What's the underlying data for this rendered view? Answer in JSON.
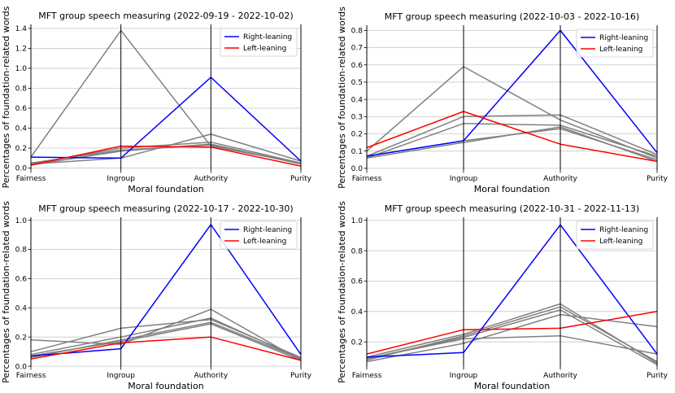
{
  "chart_data": [
    {
      "type": "line",
      "title": "MFT group speech measuring (2022-09-19 - 2022-10-02)",
      "xlabel": "Moral foundation",
      "ylabel": "Percentages of foundation-related words",
      "categories": [
        "Fairness",
        "Ingroup",
        "Authority",
        "Purity"
      ],
      "ylim": [
        -0.02,
        1.44
      ],
      "yticks": [
        0.0,
        0.2,
        0.4,
        0.6,
        0.8,
        1.0,
        1.2,
        1.4
      ],
      "ytick_labels": [
        "0.0",
        "0.2",
        "0.4",
        "0.6",
        "0.8",
        "1.0",
        "1.2",
        "1.4"
      ],
      "legend": {
        "position": "upper-right",
        "entries": [
          {
            "name": "Right-leaning",
            "color": "#0000ff"
          },
          {
            "name": "Left-leaning",
            "color": "#ff0000"
          }
        ]
      },
      "series": [
        {
          "name": "",
          "color": "#808080",
          "values": [
            0.11,
            1.38,
            0.22,
            0.05
          ]
        },
        {
          "name": "",
          "color": "#808080",
          "values": [
            0.04,
            0.1,
            0.34,
            0.07
          ]
        },
        {
          "name": "",
          "color": "#808080",
          "values": [
            0.04,
            0.2,
            0.26,
            0.05
          ]
        },
        {
          "name": "",
          "color": "#808080",
          "values": [
            0.03,
            0.17,
            0.24,
            0.04
          ]
        },
        {
          "name": "",
          "color": "#808080",
          "values": [
            0.05,
            0.18,
            0.23,
            0.05
          ]
        },
        {
          "name": "Right-leaning",
          "color": "#0000ff",
          "values": [
            0.11,
            0.1,
            0.91,
            0.07
          ]
        },
        {
          "name": "Left-leaning",
          "color": "#ff0000",
          "values": [
            0.03,
            0.22,
            0.21,
            0.02
          ]
        }
      ]
    },
    {
      "type": "line",
      "title": "MFT group speech measuring (2022-10-03 - 2022-10-16)",
      "xlabel": "Moral foundation",
      "ylabel": "Percentages of foundation-related words",
      "categories": [
        "Fairness",
        "Ingroup",
        "Authority",
        "Purity"
      ],
      "ylim": [
        -0.01,
        0.83
      ],
      "yticks": [
        0.0,
        0.1,
        0.2,
        0.3,
        0.4,
        0.5,
        0.6,
        0.7,
        0.8
      ],
      "ytick_labels": [
        "0.0",
        "0.1",
        "0.2",
        "0.3",
        "0.4",
        "0.5",
        "0.6",
        "0.7",
        "0.8"
      ],
      "legend": {
        "position": "upper-right",
        "entries": [
          {
            "name": "Right-leaning",
            "color": "#0000ff"
          },
          {
            "name": "Left-leaning",
            "color": "#ff0000"
          }
        ]
      },
      "series": [
        {
          "name": "",
          "color": "#808080",
          "values": [
            0.1,
            0.59,
            0.28,
            0.06
          ]
        },
        {
          "name": "",
          "color": "#808080",
          "values": [
            0.07,
            0.3,
            0.31,
            0.08
          ]
        },
        {
          "name": "",
          "color": "#808080",
          "values": [
            0.06,
            0.26,
            0.25,
            0.07
          ]
        },
        {
          "name": "",
          "color": "#808080",
          "values": [
            0.07,
            0.16,
            0.23,
            0.05
          ]
        },
        {
          "name": "",
          "color": "#808080",
          "values": [
            0.06,
            0.15,
            0.24,
            0.04
          ]
        },
        {
          "name": "Right-leaning",
          "color": "#0000ff",
          "values": [
            0.07,
            0.16,
            0.8,
            0.09
          ]
        },
        {
          "name": "Left-leaning",
          "color": "#ff0000",
          "values": [
            0.12,
            0.33,
            0.14,
            0.04
          ]
        }
      ]
    },
    {
      "type": "line",
      "title": "MFT group speech measuring (2022-10-17 - 2022-10-30)",
      "xlabel": "Moral foundation",
      "ylabel": "Percentages of foundation-related words",
      "categories": [
        "Fairness",
        "Ingroup",
        "Authority",
        "Purity"
      ],
      "ylim": [
        -0.005,
        1.02
      ],
      "yticks": [
        0.0,
        0.2,
        0.4,
        0.6,
        0.8,
        1.0
      ],
      "ytick_labels": [
        "0.0",
        "0.2",
        "0.4",
        "0.6",
        "0.8",
        "1.0"
      ],
      "legend": {
        "position": "upper-right",
        "entries": [
          {
            "name": "Right-leaning",
            "color": "#0000ff"
          },
          {
            "name": "Left-leaning",
            "color": "#ff0000"
          }
        ]
      },
      "series": [
        {
          "name": "",
          "color": "#808080",
          "values": [
            0.18,
            0.15,
            0.39,
            0.04
          ]
        },
        {
          "name": "",
          "color": "#808080",
          "values": [
            0.1,
            0.26,
            0.32,
            0.06
          ]
        },
        {
          "name": "",
          "color": "#808080",
          "values": [
            0.08,
            0.2,
            0.33,
            0.05
          ]
        },
        {
          "name": "",
          "color": "#808080",
          "values": [
            0.06,
            0.18,
            0.3,
            0.05
          ]
        },
        {
          "name": "",
          "color": "#808080",
          "values": [
            0.07,
            0.17,
            0.29,
            0.04
          ]
        },
        {
          "name": "Right-leaning",
          "color": "#0000ff",
          "values": [
            0.07,
            0.12,
            0.97,
            0.08
          ]
        },
        {
          "name": "Left-leaning",
          "color": "#ff0000",
          "values": [
            0.05,
            0.16,
            0.2,
            0.04
          ]
        }
      ]
    },
    {
      "type": "line",
      "title": "MFT group speech measuring (2022-10-31 - 2022-11-13)",
      "xlabel": "Moral foundation",
      "ylabel": "Percentages of foundation-related words",
      "categories": [
        "Fairness",
        "Ingroup",
        "Authority",
        "Purity"
      ],
      "ylim": [
        0.035,
        1.02
      ],
      "yticks": [
        0.2,
        0.4,
        0.6,
        0.8,
        1.0
      ],
      "ytick_labels": [
        "0.2",
        "0.4",
        "0.6",
        "0.8",
        "1.0"
      ],
      "legend": {
        "position": "upper-right",
        "entries": [
          {
            "name": "Right-leaning",
            "color": "#0000ff"
          },
          {
            "name": "Left-leaning",
            "color": "#ff0000"
          }
        ]
      },
      "series": [
        {
          "name": "",
          "color": "#808080",
          "values": [
            0.09,
            0.22,
            0.24,
            0.12
          ]
        },
        {
          "name": "",
          "color": "#808080",
          "values": [
            0.1,
            0.25,
            0.45,
            0.06
          ]
        },
        {
          "name": "",
          "color": "#808080",
          "values": [
            0.08,
            0.24,
            0.43,
            0.07
          ]
        },
        {
          "name": "",
          "color": "#808080",
          "values": [
            0.07,
            0.19,
            0.38,
            0.3
          ]
        },
        {
          "name": "",
          "color": "#808080",
          "values": [
            0.09,
            0.23,
            0.41,
            0.05
          ]
        },
        {
          "name": "Right-leaning",
          "color": "#0000ff",
          "values": [
            0.1,
            0.13,
            0.97,
            0.12
          ]
        },
        {
          "name": "Left-leaning",
          "color": "#ff0000",
          "values": [
            0.12,
            0.28,
            0.29,
            0.4
          ]
        }
      ]
    }
  ]
}
